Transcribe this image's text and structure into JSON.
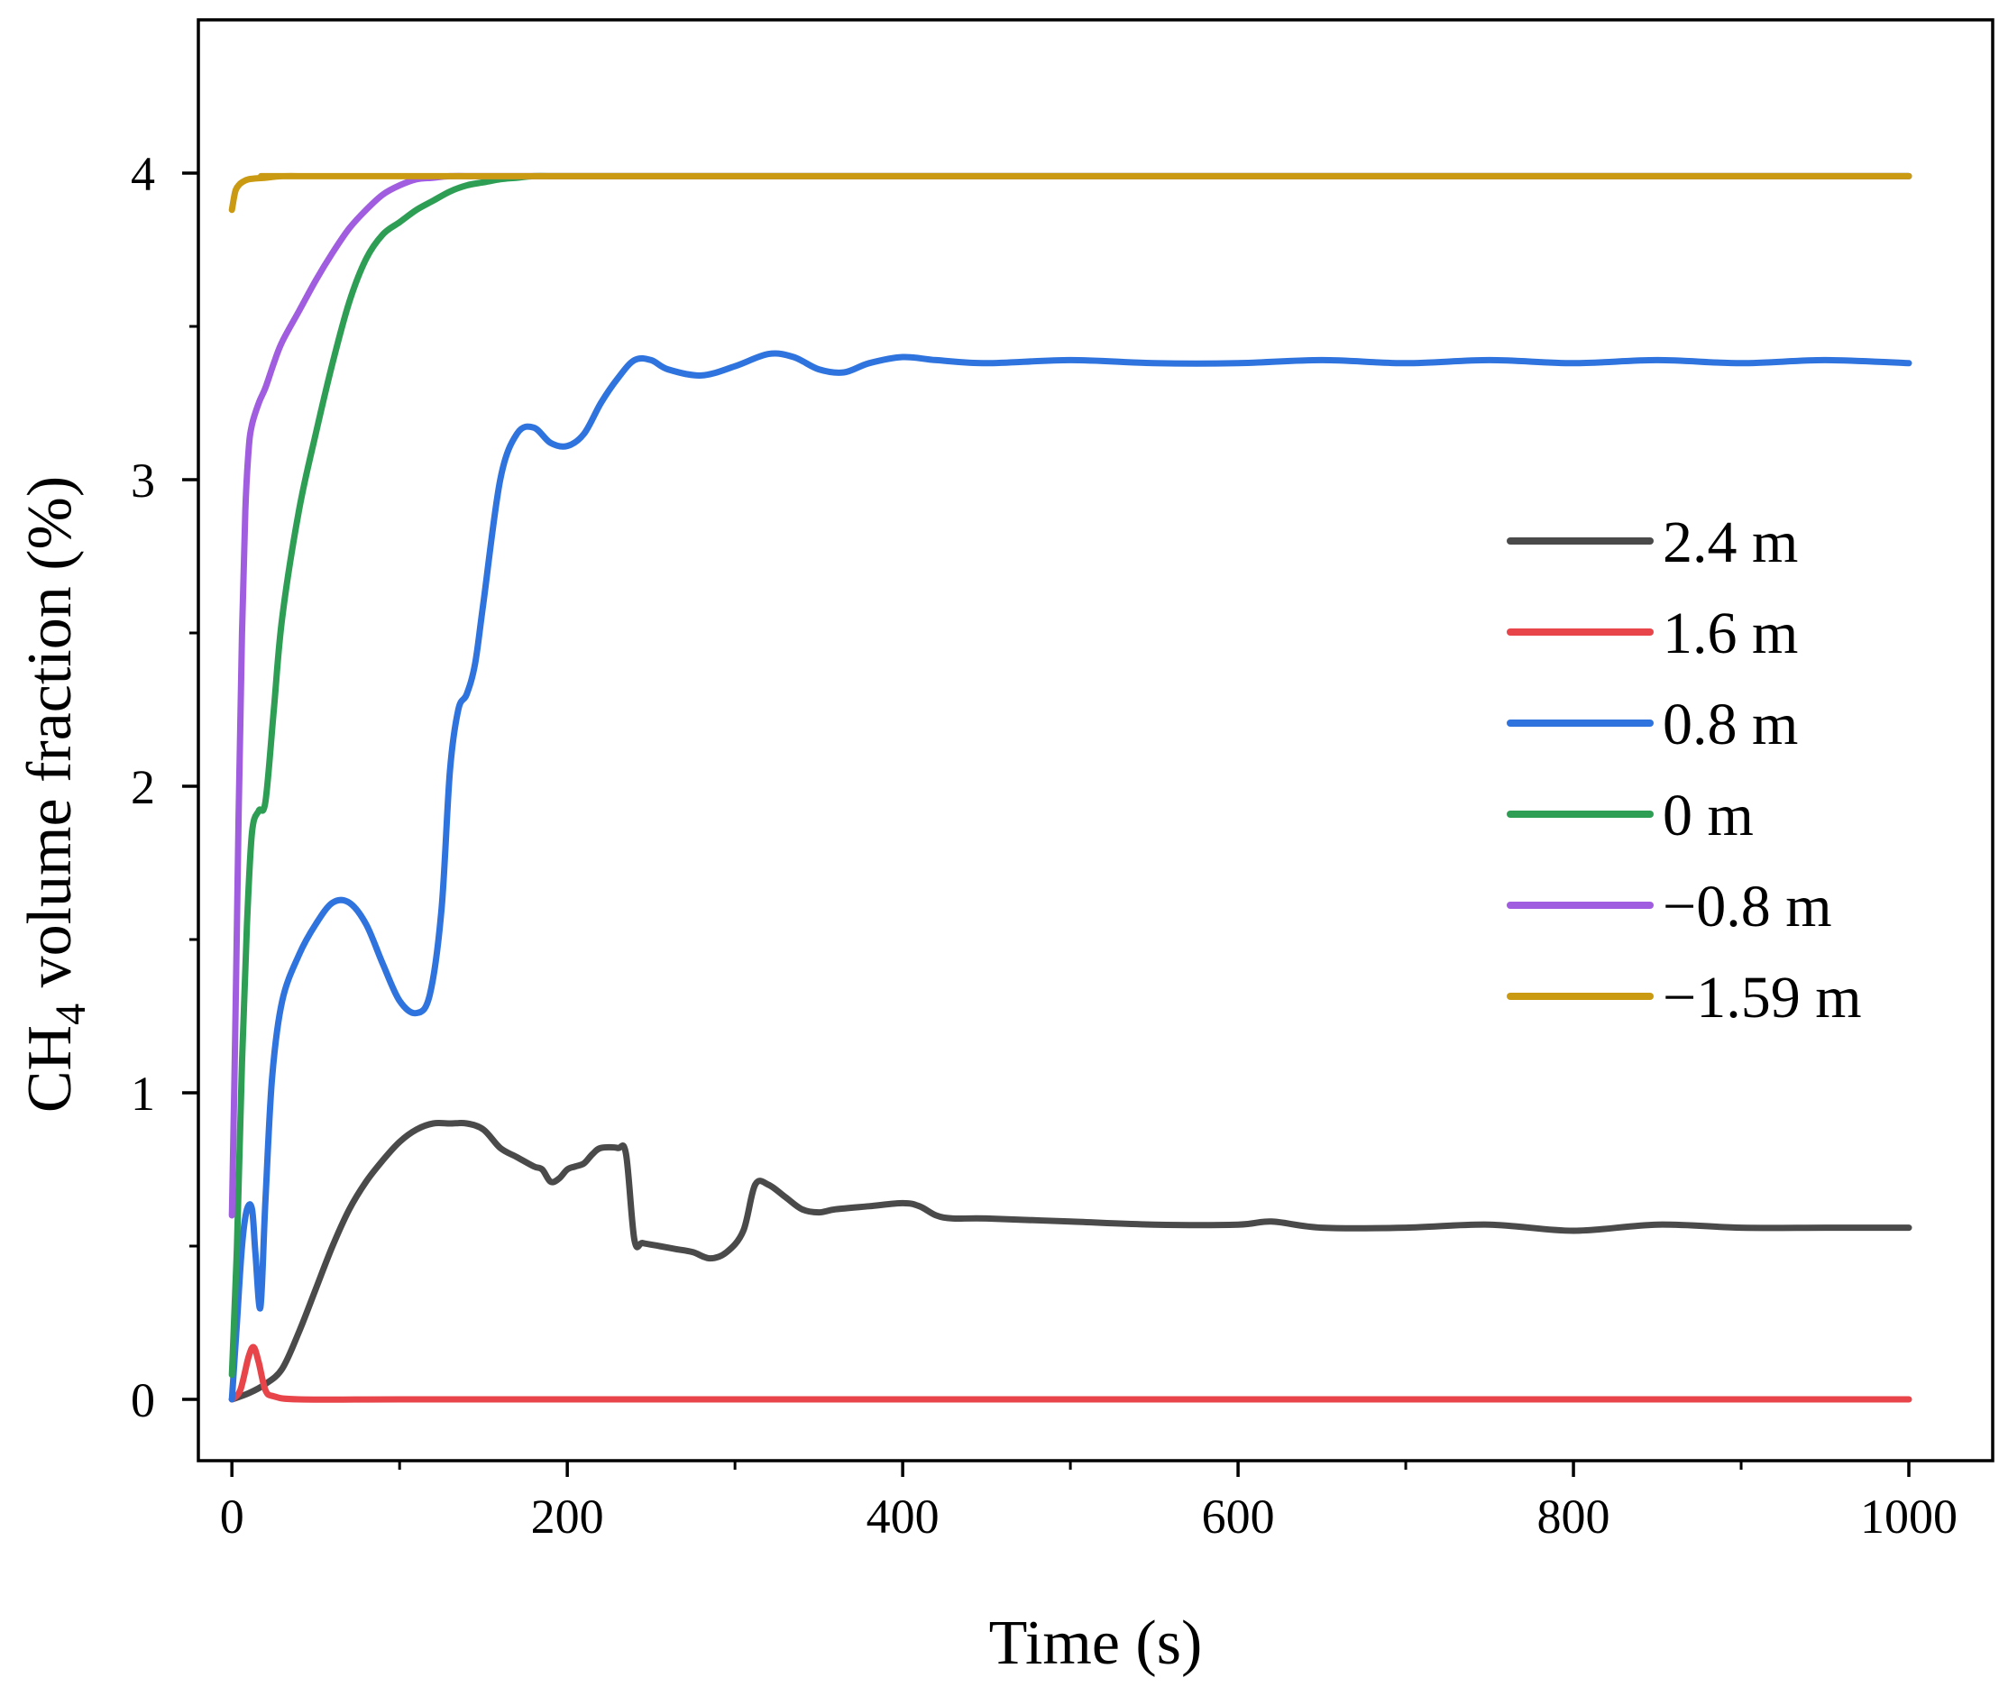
{
  "chart_data": {
    "type": "line",
    "title": "",
    "xlabel": "Time (s)",
    "ylabel_main": "CH",
    "ylabel_sub": "4",
    "ylabel_rest": " volume fraction (%)",
    "xlim": [
      -20,
      1050
    ],
    "ylim": [
      -0.2,
      4.5
    ],
    "xticks": [
      0,
      200,
      400,
      600,
      800,
      1000
    ],
    "xtick_labels": [
      "0",
      "200",
      "400",
      "600",
      "800",
      "1000"
    ],
    "xminor": [
      100,
      300,
      500,
      700,
      900
    ],
    "yticks": [
      0,
      1,
      2,
      3,
      4
    ],
    "ytick_labels": [
      "0",
      "1",
      "2",
      "3",
      "4"
    ],
    "yminor": [
      0.5,
      1.5,
      2.5,
      3.5
    ],
    "legend_position": "right",
    "series": [
      {
        "name": "2.4 m",
        "color": "#4a4a4a",
        "x": [
          0,
          10,
          20,
          30,
          40,
          50,
          60,
          70,
          80,
          90,
          100,
          110,
          120,
          130,
          140,
          150,
          160,
          170,
          180,
          185,
          190,
          195,
          200,
          205,
          210,
          215,
          220,
          230,
          235,
          240,
          245,
          255,
          265,
          275,
          285,
          295,
          305,
          312,
          320,
          330,
          340,
          350,
          360,
          380,
          400,
          410,
          420,
          430,
          450,
          500,
          550,
          600,
          620,
          650,
          700,
          750,
          800,
          850,
          900,
          950,
          1000
        ],
        "y": [
          0.0,
          0.02,
          0.05,
          0.1,
          0.22,
          0.36,
          0.5,
          0.62,
          0.71,
          0.78,
          0.84,
          0.88,
          0.9,
          0.9,
          0.9,
          0.88,
          0.82,
          0.79,
          0.76,
          0.75,
          0.71,
          0.72,
          0.75,
          0.76,
          0.77,
          0.8,
          0.82,
          0.82,
          0.8,
          0.52,
          0.51,
          0.5,
          0.49,
          0.48,
          0.46,
          0.48,
          0.55,
          0.7,
          0.7,
          0.66,
          0.62,
          0.61,
          0.62,
          0.63,
          0.64,
          0.63,
          0.6,
          0.59,
          0.59,
          0.58,
          0.57,
          0.57,
          0.58,
          0.56,
          0.56,
          0.57,
          0.55,
          0.57,
          0.56,
          0.56,
          0.56
        ]
      },
      {
        "name": "1.6 m",
        "color": "#e8454a",
        "x": [
          0,
          5,
          10,
          13,
          16,
          20,
          25,
          40,
          100,
          200,
          400,
          600,
          800,
          1000
        ],
        "y": [
          0.0,
          0.03,
          0.14,
          0.17,
          0.12,
          0.03,
          0.01,
          0.0,
          0.0,
          0.0,
          0.0,
          0.0,
          0.0,
          0.0
        ]
      },
      {
        "name": "0.8 m",
        "color": "#2f73de",
        "x": [
          0,
          3,
          6,
          9,
          12,
          14,
          17,
          20,
          24,
          30,
          40,
          50,
          60,
          70,
          80,
          90,
          100,
          110,
          118,
          125,
          130,
          135,
          140,
          145,
          150,
          160,
          170,
          180,
          190,
          200,
          210,
          220,
          230,
          240,
          250,
          260,
          280,
          300,
          320,
          335,
          350,
          365,
          380,
          400,
          420,
          450,
          500,
          550,
          600,
          650,
          700,
          750,
          800,
          850,
          900,
          950,
          1000
        ],
        "y": [
          0.0,
          0.25,
          0.5,
          0.62,
          0.62,
          0.48,
          0.3,
          0.65,
          1.05,
          1.3,
          1.45,
          1.55,
          1.62,
          1.62,
          1.55,
          1.42,
          1.3,
          1.26,
          1.32,
          1.6,
          2.05,
          2.25,
          2.3,
          2.4,
          2.6,
          3.0,
          3.15,
          3.17,
          3.12,
          3.11,
          3.15,
          3.25,
          3.33,
          3.39,
          3.39,
          3.36,
          3.34,
          3.37,
          3.41,
          3.4,
          3.36,
          3.35,
          3.38,
          3.4,
          3.39,
          3.38,
          3.39,
          3.38,
          3.38,
          3.39,
          3.38,
          3.39,
          3.38,
          3.39,
          3.38,
          3.39,
          3.38
        ]
      },
      {
        "name": "0 m",
        "color": "#2e9e55",
        "x": [
          0,
          3,
          6,
          9,
          12,
          16,
          20,
          25,
          30,
          40,
          50,
          60,
          70,
          80,
          90,
          100,
          110,
          120,
          130,
          140,
          150,
          160,
          170,
          180,
          200,
          300,
          500,
          1000
        ],
        "y": [
          0.08,
          0.5,
          1.1,
          1.55,
          1.85,
          1.92,
          1.95,
          2.25,
          2.55,
          2.9,
          3.15,
          3.38,
          3.58,
          3.72,
          3.8,
          3.84,
          3.88,
          3.91,
          3.94,
          3.96,
          3.97,
          3.98,
          3.985,
          3.99,
          3.99,
          3.99,
          3.99,
          3.99
        ]
      },
      {
        "name": "−0.8 m",
        "color": "#a05de0",
        "x": [
          0,
          2,
          4,
          6,
          8,
          10,
          12,
          16,
          20,
          25,
          30,
          40,
          50,
          60,
          70,
          80,
          90,
          100,
          110,
          120,
          130,
          150,
          200,
          500,
          1000
        ],
        "y": [
          0.6,
          1.2,
          1.9,
          2.5,
          2.9,
          3.1,
          3.18,
          3.25,
          3.3,
          3.38,
          3.45,
          3.55,
          3.65,
          3.74,
          3.82,
          3.88,
          3.93,
          3.96,
          3.98,
          3.985,
          3.99,
          3.99,
          3.99,
          3.99,
          3.99
        ]
      },
      {
        "name": "−1.59 m",
        "color": "#c99a12",
        "x": [
          0,
          2,
          4,
          6,
          10,
          20,
          30,
          50,
          100,
          1000
        ],
        "y": [
          3.88,
          3.94,
          3.96,
          3.97,
          3.98,
          3.985,
          3.99,
          3.99,
          3.99,
          3.99
        ]
      }
    ]
  }
}
